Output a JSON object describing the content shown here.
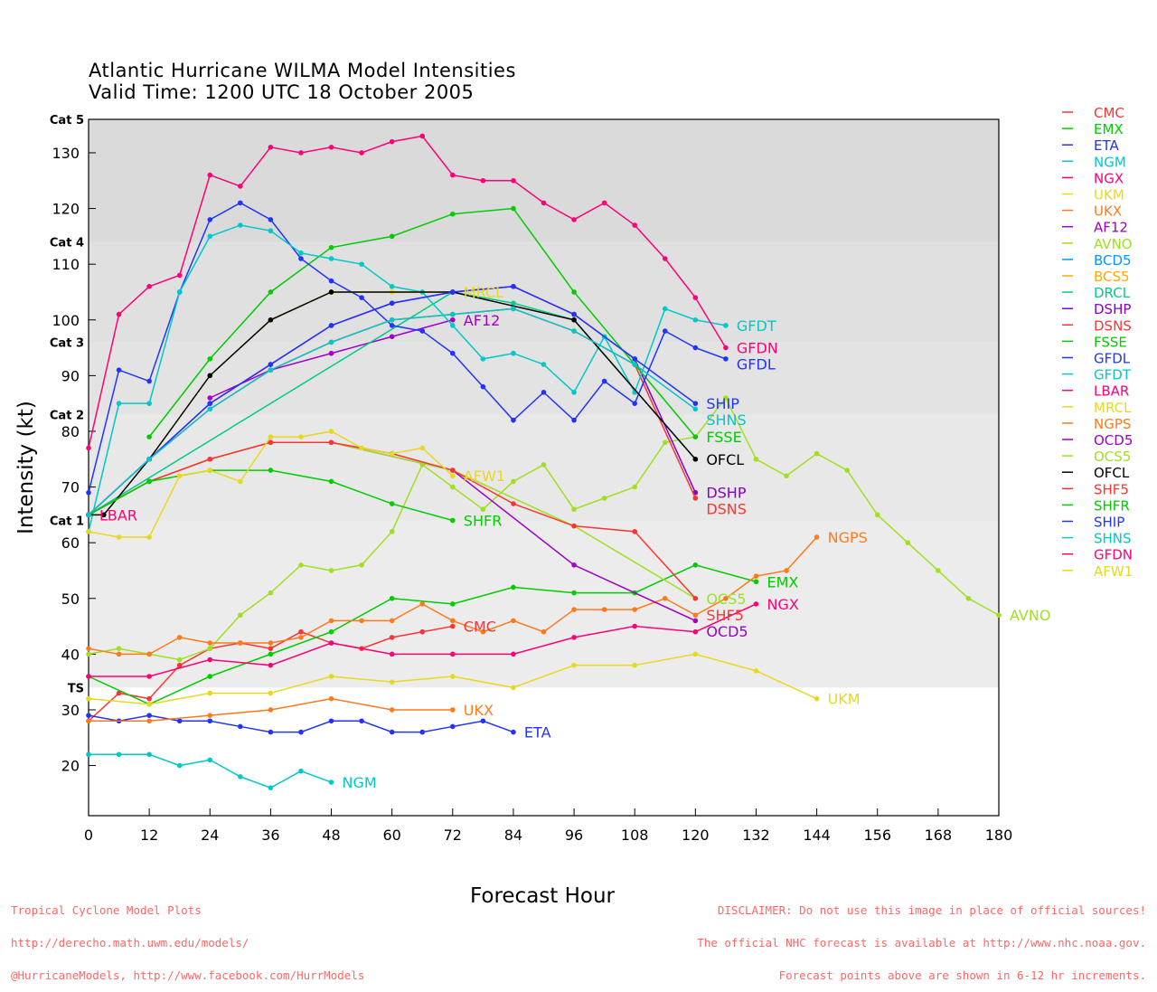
{
  "chart_data": {
    "type": "line",
    "title": "Atlantic Hurricane WILMA Model Intensities",
    "subtitle": "Valid Time: 1200 UTC 18 October 2005",
    "xlabel": "Forecast Hour",
    "ylabel": "Intensity (kt)",
    "xlim": [
      0,
      180
    ],
    "ylim": [
      11,
      136
    ],
    "xticks": [
      0,
      12,
      24,
      36,
      48,
      60,
      72,
      84,
      96,
      108,
      120,
      132,
      144,
      156,
      168,
      180
    ],
    "yticks": [
      20,
      30,
      40,
      50,
      60,
      70,
      80,
      90,
      100,
      110,
      120,
      130
    ],
    "grid": false,
    "legend_position": "right",
    "categories_bands": [
      {
        "label": "TS",
        "from": 11,
        "to": 34,
        "color": "#ffffff"
      },
      {
        "label": "Cat 1",
        "from": 34,
        "to": 64,
        "color": "#ececec"
      },
      {
        "label": "Cat 2",
        "from": 64,
        "to": 83,
        "color": "#e8e8e8"
      },
      {
        "label": "Cat 3",
        "from": 83,
        "to": 96,
        "color": "#e3e3e3"
      },
      {
        "label": "Cat 4",
        "from": 96,
        "to": 114,
        "color": "#e0e0e0"
      },
      {
        "label": "Cat 5",
        "from": 114,
        "to": 136,
        "color": "#dadada"
      }
    ],
    "series": [
      {
        "name": "CMC",
        "color": "#ff3333",
        "label": true,
        "x": [
          0,
          6,
          12,
          18,
          24,
          30,
          36,
          42,
          48,
          54,
          60,
          66,
          72
        ],
        "y": [
          28,
          33,
          32,
          38,
          41,
          42,
          41,
          44,
          42,
          41,
          43,
          44,
          45
        ]
      },
      {
        "name": "EMX",
        "color": "#00cc00",
        "label": true,
        "x": [
          0,
          12,
          24,
          36,
          48,
          60,
          72,
          84,
          96,
          108,
          120,
          132
        ],
        "y": [
          36,
          31,
          36,
          40,
          44,
          50,
          49,
          52,
          51,
          51,
          56,
          53
        ]
      },
      {
        "name": "ETA",
        "color": "#2233ff",
        "label": true,
        "x": [
          0,
          6,
          12,
          18,
          24,
          30,
          36,
          42,
          48,
          54,
          60,
          66,
          72,
          78,
          84
        ],
        "y": [
          29,
          28,
          29,
          28,
          28,
          27,
          26,
          26,
          28,
          28,
          26,
          26,
          27,
          28,
          26
        ]
      },
      {
        "name": "NGM",
        "color": "#00c8c8",
        "label": true,
        "x": [
          0,
          6,
          12,
          18,
          24,
          30,
          36,
          42,
          48
        ],
        "y": [
          22,
          22,
          22,
          20,
          21,
          18,
          16,
          19,
          17
        ]
      },
      {
        "name": "NGX",
        "color": "#ff0077",
        "label": true,
        "x": [
          0,
          12,
          24,
          36,
          48,
          60,
          72,
          84,
          96,
          108,
          120,
          132
        ],
        "y": [
          36,
          36,
          39,
          38,
          42,
          40,
          40,
          40,
          43,
          45,
          44,
          49
        ]
      },
      {
        "name": "UKM",
        "color": "#e8d820",
        "label": true,
        "x": [
          0,
          12,
          24,
          36,
          48,
          60,
          72,
          84,
          96,
          108,
          120,
          132,
          144
        ],
        "y": [
          32,
          31,
          33,
          33,
          36,
          35,
          36,
          34,
          38,
          38,
          40,
          37,
          32
        ]
      },
      {
        "name": "UKX",
        "color": "#ff7a1a",
        "label": true,
        "x": [
          0,
          12,
          24,
          36,
          48,
          60,
          72
        ],
        "y": [
          28,
          28,
          29,
          30,
          32,
          30,
          30
        ]
      },
      {
        "name": "AF12",
        "color": "#a000c8",
        "label": true,
        "x": [
          24,
          36,
          48,
          60,
          72
        ],
        "y": [
          86,
          91,
          94,
          97,
          100
        ]
      },
      {
        "name": "AVNO",
        "color": "#a0e020",
        "label": true,
        "x": [
          0,
          6,
          12,
          18,
          24,
          30,
          36,
          42,
          48,
          54,
          60,
          66,
          72,
          78,
          84,
          90,
          96,
          102,
          108,
          114,
          120,
          126,
          132,
          138,
          144,
          150,
          156,
          162,
          168,
          174,
          180
        ],
        "y": [
          40,
          41,
          40,
          39,
          41,
          47,
          51,
          56,
          55,
          56,
          62,
          74,
          70,
          66,
          71,
          74,
          66,
          68,
          70,
          78,
          79,
          86,
          75,
          72,
          76,
          73,
          65,
          60,
          55,
          50,
          47
        ]
      },
      {
        "name": "BCD5",
        "color": "#0099ff",
        "label": false,
        "x": [],
        "y": []
      },
      {
        "name": "BCS5",
        "color": "#ffaa00",
        "label": false,
        "x": [],
        "y": []
      },
      {
        "name": "DRCL",
        "color": "#00cc88",
        "label": false,
        "x": [
          0,
          72,
          84,
          96,
          120
        ],
        "y": [
          65,
          105,
          103,
          100,
          75
        ]
      },
      {
        "name": "DSHP",
        "color": "#8800cc",
        "label": true,
        "x": [
          0,
          12,
          24,
          36,
          48,
          60,
          72,
          84,
          96,
          108,
          120
        ],
        "y": [
          65,
          75,
          85,
          92,
          99,
          103,
          105,
          106,
          101,
          93,
          69
        ]
      },
      {
        "name": "DSNS",
        "color": "#ff3333",
        "label": true,
        "x": [
          0,
          12,
          24,
          36,
          48,
          60,
          72,
          84,
          96,
          108,
          120
        ],
        "y": [
          65,
          75,
          84,
          91,
          96,
          100,
          101,
          102,
          98,
          92,
          68
        ]
      },
      {
        "name": "FSSE",
        "color": "#00cc00",
        "label": true,
        "x": [
          12,
          24,
          36,
          48,
          60,
          72,
          84,
          96,
          108,
          120
        ],
        "y": [
          79,
          93,
          105,
          113,
          115,
          119,
          120,
          105,
          92,
          79
        ]
      },
      {
        "name": "GFDL",
        "color": "#2233ff",
        "label": true,
        "x": [
          0,
          6,
          12,
          18,
          24,
          30,
          36,
          42,
          48,
          54,
          60,
          66,
          72,
          78,
          84,
          90,
          96,
          102,
          108,
          114,
          120,
          126
        ],
        "y": [
          69,
          91,
          89,
          105,
          118,
          121,
          118,
          111,
          107,
          104,
          99,
          98,
          94,
          88,
          82,
          87,
          82,
          89,
          85,
          98,
          95,
          93
        ]
      },
      {
        "name": "GFDT",
        "color": "#00c8c8",
        "label": true,
        "x": [
          0,
          6,
          12,
          18,
          24,
          30,
          36,
          42,
          48,
          54,
          60,
          66,
          72,
          78,
          84,
          90,
          96,
          102,
          108,
          114,
          120,
          126
        ],
        "y": [
          62,
          85,
          85,
          105,
          115,
          117,
          116,
          112,
          111,
          110,
          106,
          105,
          99,
          93,
          94,
          92,
          87,
          97,
          87,
          102,
          100,
          99
        ]
      },
      {
        "name": "LBAR",
        "color": "#ff0077",
        "label": true,
        "x": [
          0
        ],
        "y": [
          65
        ]
      },
      {
        "name": "MRCL",
        "color": "#e8d820",
        "label": true,
        "x": [
          0,
          12,
          24,
          36,
          48,
          60,
          72
        ],
        "y": [
          65,
          75,
          90,
          100,
          105,
          105,
          105
        ]
      },
      {
        "name": "NGPS",
        "color": "#ff7a1a",
        "label": true,
        "x": [
          0,
          6,
          12,
          18,
          24,
          30,
          36,
          42,
          48,
          54,
          60,
          66,
          72,
          78,
          84,
          90,
          96,
          102,
          108,
          114,
          120,
          126,
          132,
          138,
          144
        ],
        "y": [
          41,
          40,
          40,
          43,
          42,
          42,
          42,
          43,
          46,
          46,
          46,
          49,
          46,
          44,
          46,
          44,
          48,
          48,
          48,
          50,
          47,
          50,
          54,
          55,
          61
        ]
      },
      {
        "name": "OCD5",
        "color": "#a000c8",
        "label": true,
        "x": [
          0,
          12,
          24,
          36,
          48,
          72,
          96,
          120
        ],
        "y": [
          65,
          71,
          75,
          78,
          78,
          73,
          56,
          46
        ]
      },
      {
        "name": "OCS5",
        "color": "#a0e020",
        "label": true,
        "x": [
          0,
          12,
          24,
          36,
          48,
          72,
          96,
          120
        ],
        "y": [
          65,
          71,
          75,
          78,
          78,
          73,
          63,
          50
        ]
      },
      {
        "name": "OFCL",
        "color": "#000000",
        "label": true,
        "x": [
          0,
          3,
          12,
          24,
          36,
          48,
          72,
          96,
          120
        ],
        "y": [
          65,
          65,
          75,
          90,
          100,
          105,
          105,
          100,
          75
        ]
      },
      {
        "name": "SHF5",
        "color": "#ff3333",
        "label": true,
        "x": [
          0,
          12,
          24,
          36,
          48,
          60,
          72,
          84,
          96,
          108,
          120
        ],
        "y": [
          65,
          71,
          75,
          78,
          78,
          76,
          73,
          67,
          63,
          62,
          50
        ]
      },
      {
        "name": "SHFR",
        "color": "#00cc00",
        "label": true,
        "x": [
          0,
          12,
          24,
          36,
          48,
          60,
          72
        ],
        "y": [
          65,
          71,
          73,
          73,
          71,
          67,
          64
        ]
      },
      {
        "name": "SHIP",
        "color": "#2233ff",
        "label": true,
        "x": [
          0,
          12,
          24,
          36,
          48,
          60,
          72,
          84,
          96,
          108,
          120
        ],
        "y": [
          65,
          75,
          85,
          92,
          99,
          103,
          105,
          106,
          101,
          93,
          85
        ]
      },
      {
        "name": "SHNS",
        "color": "#00c8c8",
        "label": true,
        "x": [
          0,
          12,
          24,
          36,
          48,
          60,
          72,
          84,
          96,
          108,
          120
        ],
        "y": [
          65,
          75,
          84,
          91,
          96,
          100,
          101,
          102,
          98,
          92,
          84
        ]
      },
      {
        "name": "GFDN",
        "color": "#ff0077",
        "label": true,
        "x": [
          0,
          6,
          12,
          18,
          24,
          30,
          36,
          42,
          48,
          54,
          60,
          66,
          72,
          78,
          84,
          90,
          96,
          102,
          108,
          114,
          120,
          126
        ],
        "y": [
          77,
          101,
          106,
          108,
          126,
          124,
          131,
          130,
          131,
          130,
          132,
          133,
          126,
          125,
          125,
          121,
          118,
          121,
          117,
          111,
          104,
          95
        ]
      },
      {
        "name": "AFW1",
        "color": "#e8d820",
        "label": true,
        "x": [
          0,
          6,
          12,
          18,
          24,
          30,
          36,
          42,
          48,
          54,
          60,
          66,
          72
        ],
        "y": [
          62,
          61,
          61,
          72,
          73,
          71,
          79,
          79,
          80,
          77,
          76,
          77,
          72
        ]
      }
    ]
  },
  "footer": {
    "left": [
      "Tropical Cyclone Model Plots",
      "http://derecho.math.uwm.edu/models/",
      "@HurricaneModels, http://www.facebook.com/HurrModels"
    ],
    "right": [
      "DISCLAIMER: Do not use this image in place of official sources!",
      "The official NHC forecast is available at http://www.nhc.noaa.gov.",
      "Forecast points above are shown in 6-12 hr increments."
    ]
  }
}
